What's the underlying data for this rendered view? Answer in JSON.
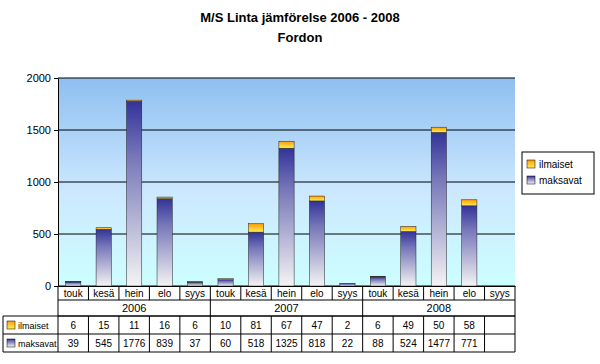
{
  "chart_data": {
    "type": "bar",
    "title": "M/S Linta jämförelse 2006 - 2008",
    "subtitle": "Fordon",
    "categories": [
      "touk",
      "kesä",
      "hein",
      "elo",
      "syys",
      "touk",
      "kesä",
      "hein",
      "elo",
      "syys",
      "touk",
      "kesä",
      "hein",
      "elo",
      "syys"
    ],
    "groups": [
      "2006",
      "2007",
      "2008"
    ],
    "series": [
      {
        "name": "maksavat",
        "color": "#333399",
        "values": [
          39,
          545,
          1776,
          839,
          37,
          60,
          518,
          1325,
          818,
          22,
          88,
          524,
          1477,
          771,
          null
        ]
      },
      {
        "name": "ilmaiset",
        "color": "#ff9900",
        "values": [
          6,
          15,
          11,
          16,
          6,
          10,
          81,
          67,
          47,
          2,
          6,
          49,
          50,
          58,
          null
        ]
      }
    ],
    "ylim": [
      0,
      2000
    ],
    "yticks": [
      0,
      500,
      1000,
      1500,
      2000
    ],
    "stacked": true,
    "grid": true,
    "legend": "right"
  }
}
